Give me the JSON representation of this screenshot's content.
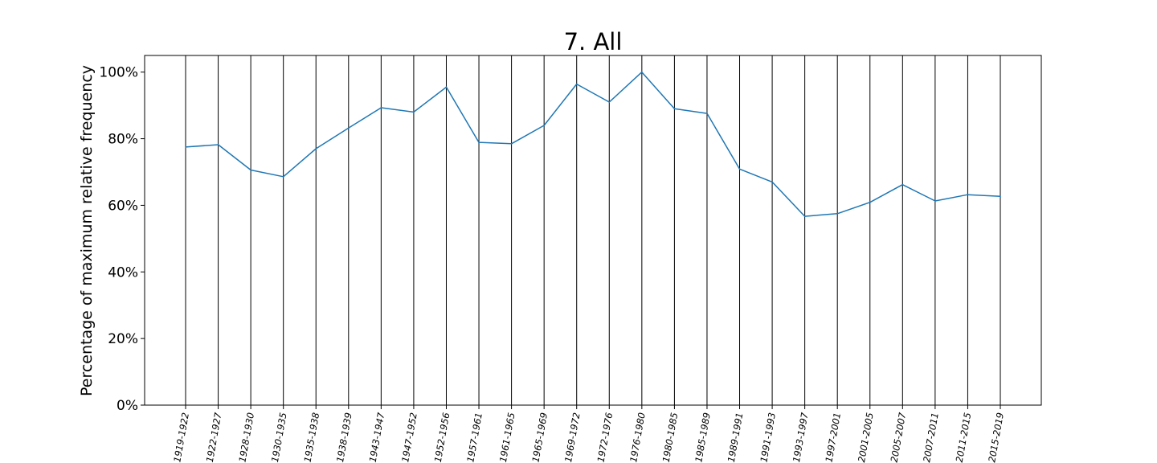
{
  "chart_data": {
    "type": "line",
    "title": "7. All",
    "xlabel": "",
    "ylabel": "Percentage of maximum relative frequency",
    "ylim": [
      0,
      105
    ],
    "yticks": [
      {
        "value": 0,
        "label": "0%"
      },
      {
        "value": 20,
        "label": "20%"
      },
      {
        "value": 40,
        "label": "40%"
      },
      {
        "value": 60,
        "label": "60%"
      },
      {
        "value": 80,
        "label": "80%"
      },
      {
        "value": 100,
        "label": "100%"
      }
    ],
    "grid": "vertical lines at each category",
    "categories": [
      "1919-1922",
      "1922-1927",
      "1928-1930",
      "1930-1935",
      "1935-1938",
      "1938-1939",
      "1943-1947",
      "1947-1952",
      "1952-1956",
      "1957-1961",
      "1961-1965",
      "1965-1969",
      "1969-1972",
      "1972-1976",
      "1976-1980",
      "1980-1985",
      "1985-1989",
      "1989-1991",
      "1991-1993",
      "1993-1997",
      "1997-2001",
      "2001-2005",
      "2005-2007",
      "2007-2011",
      "2011-2015",
      "2015-2019"
    ],
    "series": [
      {
        "color": "#1f77b4",
        "values": [
          77.5,
          78.2,
          70.6,
          68.6,
          77.0,
          83.2,
          89.3,
          88.0,
          95.5,
          78.9,
          78.5,
          84.0,
          96.4,
          91.0,
          100.0,
          89.0,
          87.6,
          70.9,
          67.0,
          56.7,
          57.5,
          60.9,
          66.2,
          61.3,
          63.2,
          62.7
        ]
      }
    ]
  }
}
